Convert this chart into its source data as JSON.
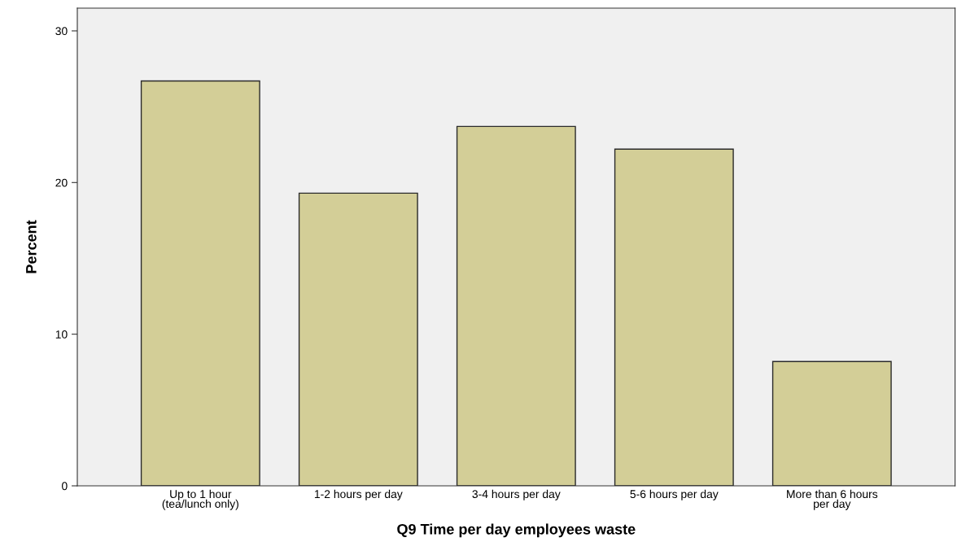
{
  "chart_data": {
    "type": "bar",
    "xlabel": "Q9 Time per day employees waste",
    "ylabel": "Percent",
    "categories": [
      "Up to 1 hour\n(tea/lunch only)",
      "1-2 hours per day",
      "3-4 hours per day",
      "5-6 hours per day",
      "More than 6 hours\nper day"
    ],
    "values": [
      26.7,
      19.3,
      23.7,
      22.2,
      8.2
    ],
    "color": "#d3ce97",
    "ylim": [
      0,
      31.5
    ],
    "yticks": [
      0,
      10,
      20,
      30
    ],
    "grid": false,
    "legend": false
  }
}
